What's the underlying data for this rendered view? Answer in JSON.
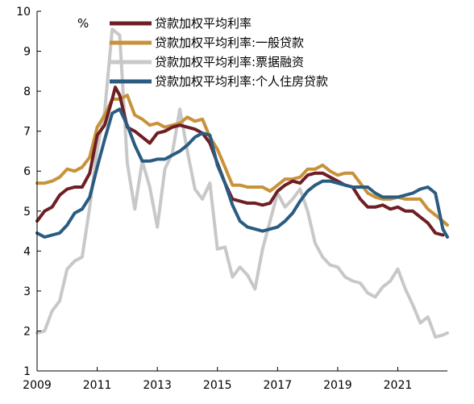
{
  "chart_data": {
    "type": "line",
    "title": "",
    "xlabel": "",
    "ylabel": "",
    "y_unit": "%",
    "xlim": [
      2009.0,
      2022.65
    ],
    "ylim": [
      1,
      10
    ],
    "x_ticks": [
      2009,
      2011,
      2013,
      2015,
      2017,
      2019,
      2021
    ],
    "y_ticks": [
      1,
      2,
      3,
      4,
      5,
      6,
      7,
      8,
      9,
      10
    ],
    "grid": false,
    "legend_position": "top",
    "series": [
      {
        "name": "贷款加权平均利率",
        "color": "#6e1f24",
        "x": [
          2009.0,
          2009.25,
          2009.5,
          2009.75,
          2010.0,
          2010.25,
          2010.5,
          2010.75,
          2011.0,
          2011.25,
          2011.5,
          2011.6,
          2011.75,
          2012.0,
          2012.25,
          2012.5,
          2012.75,
          2013.0,
          2013.25,
          2013.5,
          2013.75,
          2014.0,
          2014.25,
          2014.5,
          2014.75,
          2015.0,
          2015.25,
          2015.5,
          2015.75,
          2016.0,
          2016.25,
          2016.5,
          2016.75,
          2017.0,
          2017.25,
          2017.5,
          2017.75,
          2018.0,
          2018.25,
          2018.5,
          2018.75,
          2019.0,
          2019.25,
          2019.5,
          2019.75,
          2020.0,
          2020.25,
          2020.5,
          2020.75,
          2021.0,
          2021.25,
          2021.5,
          2021.75,
          2022.0,
          2022.25,
          2022.5
        ],
        "y": [
          4.75,
          5.0,
          5.1,
          5.4,
          5.55,
          5.6,
          5.6,
          5.95,
          6.9,
          7.15,
          7.8,
          8.1,
          7.9,
          7.1,
          7.0,
          6.85,
          6.7,
          6.95,
          7.0,
          7.1,
          7.15,
          7.1,
          7.05,
          6.95,
          6.7,
          6.2,
          5.7,
          5.3,
          5.25,
          5.2,
          5.2,
          5.15,
          5.2,
          5.5,
          5.65,
          5.75,
          5.7,
          5.9,
          5.95,
          5.95,
          5.85,
          5.75,
          5.65,
          5.6,
          5.3,
          5.1,
          5.1,
          5.15,
          5.05,
          5.1,
          5.0,
          5.0,
          4.85,
          4.7,
          4.45,
          4.4
        ]
      },
      {
        "name": "贷款加权平均利率:一般贷款",
        "color": "#c8923a",
        "x": [
          2009.0,
          2009.25,
          2009.5,
          2009.75,
          2010.0,
          2010.25,
          2010.5,
          2010.75,
          2011.0,
          2011.25,
          2011.5,
          2011.75,
          2012.0,
          2012.25,
          2012.5,
          2012.75,
          2013.0,
          2013.25,
          2013.5,
          2013.75,
          2014.0,
          2014.25,
          2014.5,
          2014.75,
          2015.0,
          2015.25,
          2015.5,
          2015.75,
          2016.0,
          2016.25,
          2016.5,
          2016.75,
          2017.0,
          2017.25,
          2017.5,
          2017.75,
          2018.0,
          2018.25,
          2018.5,
          2018.75,
          2019.0,
          2019.25,
          2019.5,
          2019.75,
          2020.0,
          2020.25,
          2020.5,
          2020.75,
          2021.0,
          2021.25,
          2021.5,
          2021.75,
          2022.0,
          2022.25,
          2022.5,
          2022.65
        ],
        "y": [
          5.7,
          5.7,
          5.75,
          5.85,
          6.05,
          6.0,
          6.1,
          6.35,
          7.1,
          7.4,
          7.8,
          7.8,
          7.9,
          7.4,
          7.3,
          7.15,
          7.2,
          7.1,
          7.15,
          7.2,
          7.35,
          7.25,
          7.3,
          6.85,
          6.55,
          6.1,
          5.65,
          5.65,
          5.6,
          5.6,
          5.6,
          5.5,
          5.65,
          5.8,
          5.8,
          5.85,
          6.05,
          6.05,
          6.15,
          6.0,
          5.9,
          5.95,
          5.95,
          5.7,
          5.45,
          5.35,
          5.3,
          5.3,
          5.35,
          5.3,
          5.3,
          5.3,
          5.05,
          4.9,
          4.75,
          4.65
        ]
      },
      {
        "name": "贷款加权平均利率:票据融资",
        "color": "#c8c8c8",
        "x": [
          2009.0,
          2009.25,
          2009.5,
          2009.75,
          2010.0,
          2010.25,
          2010.5,
          2010.75,
          2011.0,
          2011.25,
          2011.5,
          2011.75,
          2012.0,
          2012.25,
          2012.5,
          2012.75,
          2013.0,
          2013.25,
          2013.5,
          2013.75,
          2014.0,
          2014.25,
          2014.5,
          2014.75,
          2015.0,
          2015.25,
          2015.5,
          2015.75,
          2016.0,
          2016.25,
          2016.5,
          2016.75,
          2017.0,
          2017.25,
          2017.5,
          2017.75,
          2018.0,
          2018.25,
          2018.5,
          2018.75,
          2019.0,
          2019.25,
          2019.5,
          2019.75,
          2020.0,
          2020.25,
          2020.5,
          2020.75,
          2021.0,
          2021.25,
          2021.5,
          2021.75,
          2022.0,
          2022.25,
          2022.5,
          2022.65
        ],
        "y": [
          1.95,
          2.0,
          2.5,
          2.75,
          3.55,
          3.75,
          3.85,
          5.1,
          6.55,
          7.5,
          9.55,
          9.4,
          6.2,
          5.05,
          6.25,
          5.6,
          4.6,
          6.05,
          6.45,
          7.55,
          6.5,
          5.55,
          5.3,
          5.7,
          4.05,
          4.1,
          3.35,
          3.6,
          3.4,
          3.05,
          4.05,
          4.75,
          5.45,
          5.1,
          5.3,
          5.55,
          5.0,
          4.2,
          3.85,
          3.65,
          3.6,
          3.35,
          3.25,
          3.2,
          2.95,
          2.85,
          3.1,
          3.25,
          3.55,
          3.05,
          2.65,
          2.2,
          2.35,
          1.85,
          1.9,
          1.95
        ]
      },
      {
        "name": "贷款加权平均利率:个人住房贷款",
        "color": "#2a5c82",
        "x": [
          2009.0,
          2009.25,
          2009.5,
          2009.75,
          2010.0,
          2010.25,
          2010.5,
          2010.75,
          2011.0,
          2011.25,
          2011.5,
          2011.75,
          2012.0,
          2012.25,
          2012.5,
          2012.75,
          2013.0,
          2013.25,
          2013.5,
          2013.75,
          2014.0,
          2014.25,
          2014.5,
          2014.75,
          2015.0,
          2015.25,
          2015.5,
          2015.75,
          2016.0,
          2016.25,
          2016.5,
          2016.75,
          2017.0,
          2017.25,
          2017.5,
          2017.75,
          2018.0,
          2018.25,
          2018.5,
          2018.75,
          2019.0,
          2019.25,
          2019.5,
          2019.75,
          2020.0,
          2020.25,
          2020.5,
          2020.75,
          2021.0,
          2021.25,
          2021.5,
          2021.75,
          2022.0,
          2022.25,
          2022.5,
          2022.65
        ],
        "y": [
          4.45,
          4.35,
          4.4,
          4.45,
          4.65,
          4.95,
          5.05,
          5.35,
          6.1,
          6.8,
          7.45,
          7.55,
          7.15,
          6.65,
          6.25,
          6.25,
          6.3,
          6.3,
          6.4,
          6.5,
          6.65,
          6.85,
          6.95,
          6.9,
          6.15,
          5.7,
          5.15,
          4.75,
          4.6,
          4.55,
          4.5,
          4.55,
          4.6,
          4.75,
          4.95,
          5.25,
          5.5,
          5.65,
          5.75,
          5.75,
          5.7,
          5.65,
          5.6,
          5.6,
          5.6,
          5.45,
          5.35,
          5.35,
          5.35,
          5.4,
          5.45,
          5.55,
          5.6,
          5.45,
          4.55,
          4.35
        ]
      }
    ]
  }
}
